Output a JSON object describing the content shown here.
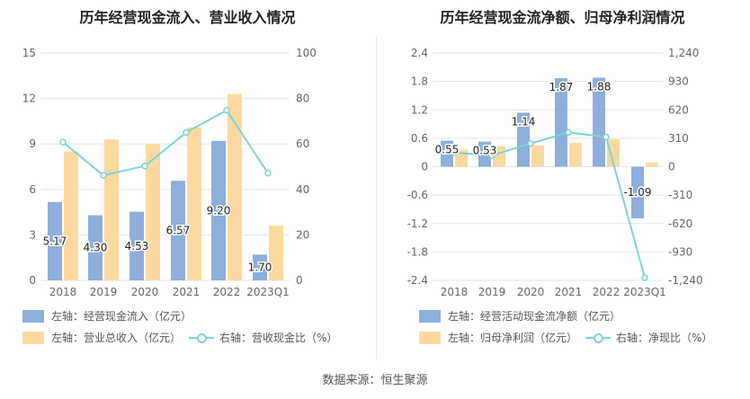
{
  "source": "数据来源：恒生聚源",
  "colors": {
    "blue": "#8eaedb",
    "orange": "#fdd9a0",
    "teal": "#7fd3d6"
  },
  "chart_data": [
    {
      "type": "bar",
      "title": "历年经营现金流入、营业收入情况",
      "categories": [
        "2018",
        "2019",
        "2020",
        "2021",
        "2022",
        "2023Q1"
      ],
      "left_axis": {
        "ticks": [
          "15",
          "12",
          "9",
          "6",
          "3",
          "0"
        ],
        "ylim": [
          0,
          15
        ]
      },
      "right_axis": {
        "ticks": [
          "100",
          "80",
          "60",
          "40",
          "20",
          "0"
        ],
        "ylim": [
          0,
          100
        ]
      },
      "series": [
        {
          "name": "左轴：经营现金流入（亿元）",
          "type": "bar",
          "axis": "left",
          "values": [
            5.17,
            4.3,
            4.53,
            6.57,
            9.2,
            1.7
          ],
          "labels": [
            "5.17",
            "4.30",
            "4.53",
            "6.57",
            "9.20",
            "1.70"
          ]
        },
        {
          "name": "左轴：营业总收入（亿元）",
          "type": "bar",
          "axis": "left",
          "values": [
            8.5,
            9.3,
            9.0,
            10.1,
            12.3,
            3.6
          ]
        },
        {
          "name": "右轴：营收现金比（%）",
          "type": "line",
          "axis": "right",
          "values": [
            60.8,
            46.2,
            50.3,
            65.1,
            74.8,
            47.2
          ]
        }
      ]
    },
    {
      "type": "bar",
      "title": "历年经营现金流净额、归母净利润情况",
      "categories": [
        "2018",
        "2019",
        "2020",
        "2021",
        "2022",
        "2023Q1"
      ],
      "left_axis": {
        "ticks": [
          "2.4",
          "1.8",
          "1.2",
          "0.6",
          "0",
          "-0.6",
          "-1.2",
          "-1.8",
          "-2.4"
        ],
        "ylim": [
          -2.4,
          2.4
        ]
      },
      "right_axis": {
        "ticks": [
          "1,240",
          "930",
          "620",
          "310",
          "0",
          "-310",
          "-620",
          "-930",
          "-1,240"
        ],
        "ylim": [
          -1240,
          1240
        ]
      },
      "series": [
        {
          "name": "左轴：经营活动现金流净额（亿元）",
          "type": "bar",
          "axis": "left",
          "values": [
            0.55,
            0.53,
            1.14,
            1.87,
            1.88,
            -1.09
          ],
          "labels": [
            "0.55",
            "0.53",
            "1.14",
            "1.87",
            "1.88",
            "-1.09"
          ]
        },
        {
          "name": "左轴：归母净利润（亿元）",
          "type": "bar",
          "axis": "left",
          "values": [
            0.36,
            0.43,
            0.45,
            0.5,
            0.58,
            0.09
          ]
        },
        {
          "name": "右轴：净现比（%）",
          "type": "line",
          "axis": "right",
          "values": [
            153,
            123,
            253,
            374,
            324,
            -1211
          ]
        }
      ]
    }
  ]
}
